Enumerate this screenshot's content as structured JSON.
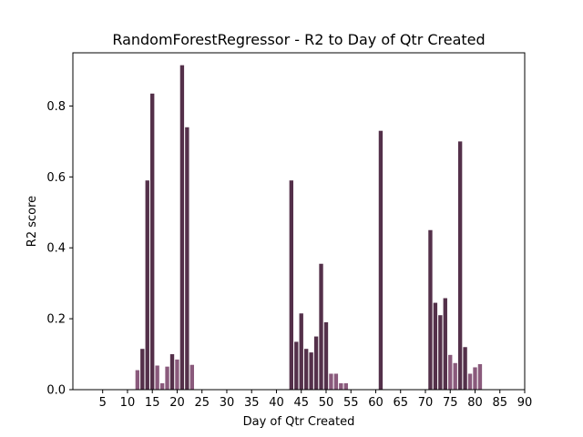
{
  "chart_data": {
    "type": "bar",
    "title": "RandomForestRegressor - R2 to Day of Qtr Created",
    "xlabel": "Day of Qtr Created",
    "ylabel": "R2 score",
    "xlim": [
      -1,
      90
    ],
    "ylim": [
      0,
      0.95
    ],
    "xticks": [
      5,
      10,
      15,
      20,
      25,
      30,
      35,
      40,
      45,
      50,
      55,
      60,
      65,
      70,
      75,
      80,
      85,
      90
    ],
    "yticks": [
      0.0,
      0.2,
      0.4,
      0.6,
      0.8
    ],
    "ytick_labels": [
      "0.0",
      "0.2",
      "0.4",
      "0.6",
      "0.8"
    ],
    "grid": false,
    "colors": {
      "dark": "#54304a",
      "light": "#8a5a7c"
    },
    "x": [
      12,
      13,
      14,
      15,
      16,
      17,
      18,
      19,
      20,
      21,
      22,
      23,
      43,
      44,
      45,
      46,
      47,
      48,
      49,
      50,
      51,
      52,
      53,
      54,
      61,
      71,
      72,
      73,
      74,
      75,
      76,
      77,
      78,
      79,
      80,
      81
    ],
    "values": [
      0.055,
      0.115,
      0.59,
      0.835,
      0.068,
      0.018,
      0.065,
      0.1,
      0.085,
      0.915,
      0.74,
      0.07,
      0.59,
      0.135,
      0.215,
      0.115,
      0.105,
      0.15,
      0.355,
      0.19,
      0.045,
      0.045,
      0.018,
      0.018,
      0.73,
      0.45,
      0.245,
      0.21,
      0.258,
      0.098,
      0.075,
      0.7,
      0.12,
      0.045,
      0.063,
      0.072
    ]
  }
}
